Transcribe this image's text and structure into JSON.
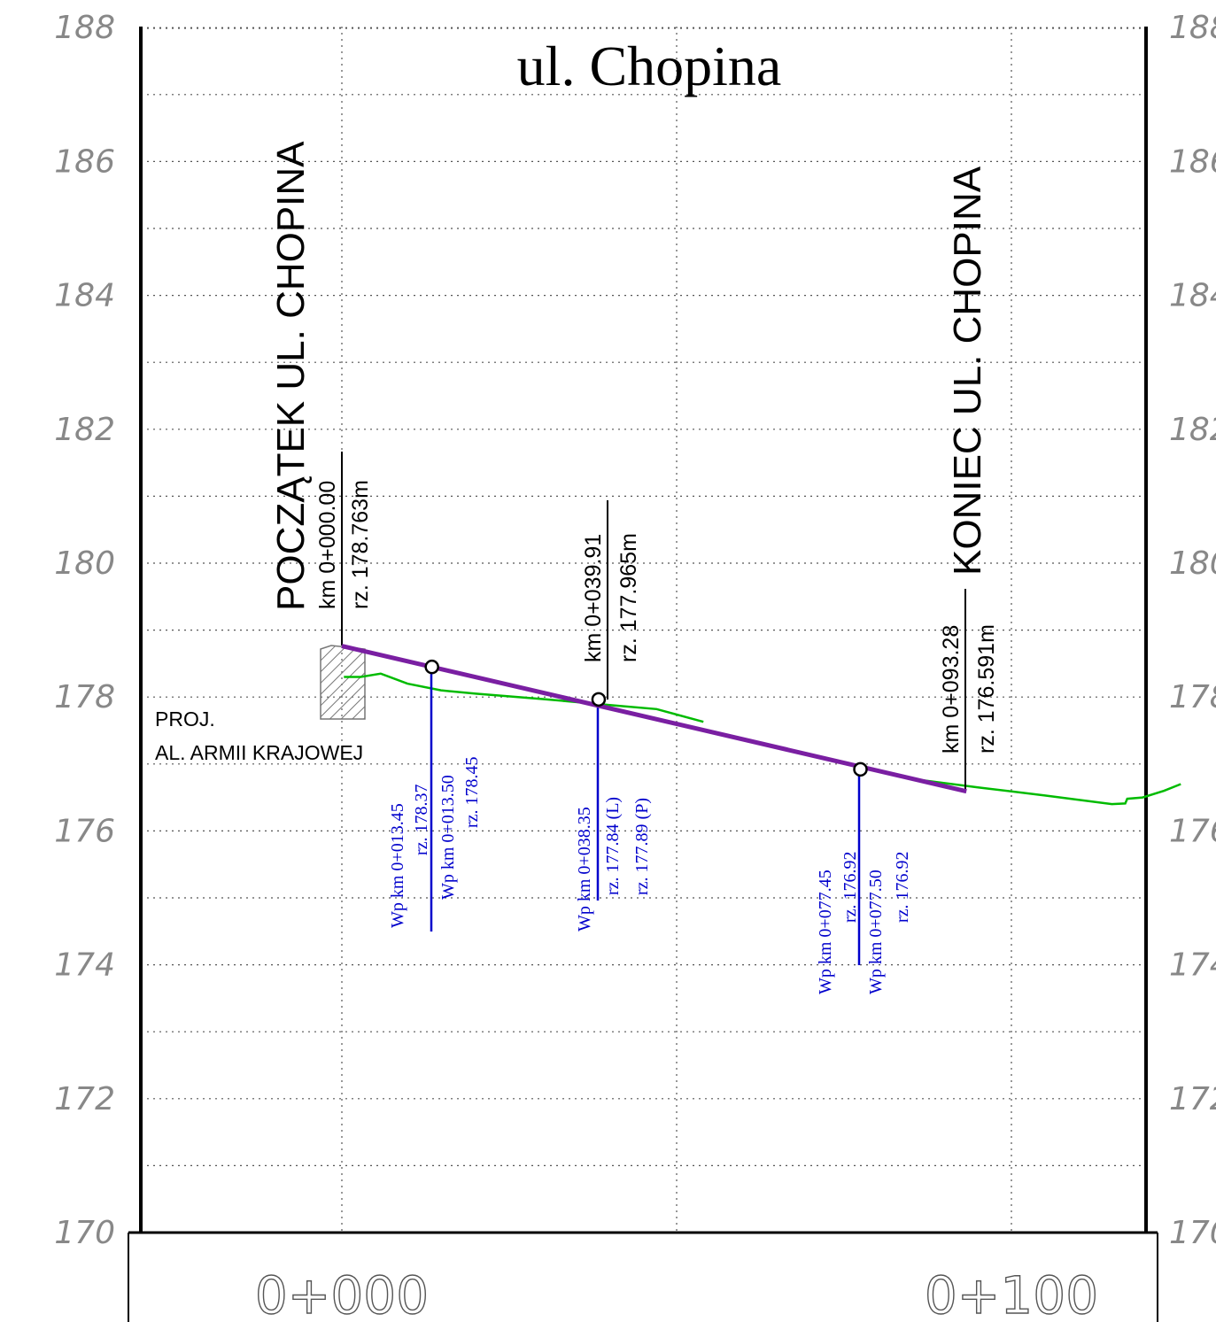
{
  "title": "ul. Chopina",
  "elevation_labels": [
    "188",
    "186",
    "184",
    "182",
    "180",
    "178",
    "176",
    "174",
    "172",
    "170"
  ],
  "elevation_labels_right": [
    "188",
    "186",
    "184",
    "182",
    "180",
    "178",
    "176",
    "174",
    "172",
    "170"
  ],
  "chainage_labels": [
    "0+000",
    "0+100"
  ],
  "start_label": "POCZĄTEK UL. CHOPINA",
  "end_label": "KONIEC UL. CHOPINA",
  "proj_label_line1": "PROJ.",
  "proj_label_line2": "AL. ARMII KRAJOWEJ",
  "stations": {
    "start": {
      "km": "km 0+000.00",
      "rz": "rz. 178.763m"
    },
    "mid": {
      "km": "km 0+039.91",
      "rz": "rz. 177.965m"
    },
    "end": {
      "km": "km 0+093.28",
      "rz": "rz. 176.591m"
    }
  },
  "wells": [
    {
      "lines": [
        "Wp  km 0+013.45",
        "rz. 178.37",
        "Wp  km 0+013.50",
        "rz. 178.45"
      ]
    },
    {
      "lines": [
        "Wp  km 0+038.35",
        "rz. 177.84 (L)",
        "rz. 177.89 (P)"
      ]
    },
    {
      "lines": [
        "Wp  km 0+077.45",
        "rz. 176.92",
        "Wp  km 0+077.50",
        "rz. 176.92"
      ]
    }
  ],
  "colors": {
    "design_line": "#7a1fa2",
    "terrain_line": "#00bb00",
    "well_line": "#0000cc",
    "frame": "#000000",
    "grid": "#555555"
  },
  "chart_data": {
    "type": "line",
    "title": "ul. Chopina",
    "ylim": [
      170,
      188
    ],
    "xlim": [
      -30,
      122
    ],
    "y_ticks": [
      170,
      172,
      174,
      176,
      178,
      180,
      182,
      184,
      186,
      188
    ],
    "x_ticks": [
      "0+000",
      "0+100"
    ],
    "grid": true,
    "series": [
      {
        "x": [
          0,
          93.28
        ],
        "y": [
          178.763,
          176.591
        ]
      },
      {
        "x": [
          0.3,
          2.8,
          5.8,
          9.8,
          14.8,
          20,
          30,
          40,
          47,
          54
        ],
        "y": [
          178.3,
          178.3,
          178.35,
          178.2,
          178.1,
          178.05,
          177.97,
          177.88,
          177.82,
          177.63
        ]
      },
      {
        "x": [
          85,
          95,
          105,
          115,
          117,
          117.3,
          119.6,
          122.8,
          125.3
        ],
        "y": [
          176.78,
          176.65,
          176.53,
          176.4,
          176.41,
          176.48,
          176.5,
          176.6,
          176.7
        ]
      }
    ],
    "points": [
      {
        "x": 13.45,
        "y": 178.45
      },
      {
        "x": 38.35,
        "y": 177.965
      },
      {
        "x": 77.45,
        "y": 176.92
      }
    ]
  }
}
